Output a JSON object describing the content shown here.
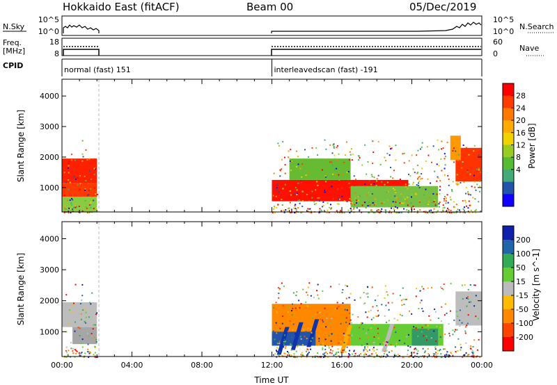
{
  "header": {
    "station": "Hokkaido East (fitACF)",
    "beam": "Beam 00",
    "date": "05/Dec/2019"
  },
  "strip_labels": {
    "nsky": "N.Sky",
    "freq_line1": "Freq.",
    "freq_line2": "[MHz]",
    "cpid": "CPID",
    "nsearch": "N.Search",
    "nave": "Nave"
  },
  "noise_axis": {
    "left_ticks": [
      "10^5",
      "10^0"
    ],
    "right_ticks": [
      "10^5",
      "10^0"
    ]
  },
  "freq_axis": {
    "left_ticks": [
      "18",
      "8"
    ],
    "right_ticks": [
      "60",
      "0"
    ]
  },
  "cpid_segments": [
    {
      "label": "normal (fast) 151",
      "start_hr": 0.0,
      "end_hr": 2.0
    },
    {
      "label": "interleavedscan (fast) -191",
      "start_hr": 12.0,
      "end_hr": 24.0
    }
  ],
  "chart_data": [
    {
      "type": "heatmap",
      "ylabel": "Slant Range [km]",
      "xlim": [
        0,
        24
      ],
      "ylim": [
        200,
        4550
      ],
      "yticks": [
        "1000",
        "2000",
        "3000",
        "4000"
      ],
      "colorbar": {
        "label": "Power [dB]",
        "ticks": [
          "28",
          "24",
          "20",
          "16",
          "12",
          "8",
          "4"
        ],
        "colors": [
          "#ff0000",
          "#ff3c00",
          "#ff7800",
          "#ffaa00",
          "#f0d200",
          "#99cc22",
          "#55bb33",
          "#44aa77",
          "#2255aa",
          "#1100ff"
        ]
      },
      "regions": [
        {
          "t0": 0.0,
          "t1": 2.0,
          "r0": 1150,
          "r1": 1950,
          "color": "#ff2000"
        },
        {
          "t0": 0.0,
          "t1": 2.0,
          "r0": 700,
          "r1": 1150,
          "color": "#ff3a00"
        },
        {
          "t0": 0.0,
          "t1": 2.0,
          "r0": 200,
          "r1": 700,
          "color": "#88cc44"
        },
        {
          "t0": 12.0,
          "t1": 19.8,
          "r0": 550,
          "r1": 1250,
          "color": "#ff1000"
        },
        {
          "t0": 13.0,
          "t1": 16.5,
          "r0": 1250,
          "r1": 1950,
          "color": "#66bb33"
        },
        {
          "t0": 16.5,
          "t1": 21.5,
          "r0": 350,
          "r1": 1050,
          "color": "#77c044"
        },
        {
          "t0": 22.5,
          "t1": 24.0,
          "r0": 1200,
          "r1": 2300,
          "color": "#ff3300"
        },
        {
          "t0": 22.2,
          "t1": 22.8,
          "r0": 1900,
          "r1": 2700,
          "color": "#ff9900"
        }
      ]
    },
    {
      "type": "heatmap",
      "ylabel": "Slant Range [km]",
      "xlabel": "Time UT",
      "xlim": [
        0,
        24
      ],
      "ylim": [
        200,
        4550
      ],
      "yticks": [
        "1000",
        "2000",
        "3000",
        "4000"
      ],
      "xticks": [
        "00:00",
        "04:00",
        "08:00",
        "12:00",
        "16:00",
        "20:00",
        "00:00"
      ],
      "colorbar": {
        "label": "Velocity [m s^-1]",
        "ticks": [
          "200",
          "100",
          "50",
          "15",
          "-15",
          "-50",
          "-100",
          "-200"
        ],
        "colors": [
          "#1020aa",
          "#2266aa",
          "#33aa55",
          "#66cc33",
          "#bbbbbb",
          "#ffbb00",
          "#ff8800",
          "#ff4400",
          "#ff0000"
        ]
      },
      "regions": [
        {
          "t0": 0.0,
          "t1": 2.0,
          "r0": 1150,
          "r1": 1950,
          "color": "#bdbdbd"
        },
        {
          "t0": 0.6,
          "t1": 2.0,
          "r0": 600,
          "r1": 1150,
          "color": "#a6a6a6"
        },
        {
          "t0": 12.0,
          "t1": 16.5,
          "r0": 550,
          "r1": 1900,
          "color": "#ff8800"
        },
        {
          "t0": 12.0,
          "t1": 14.5,
          "r0": 550,
          "r1": 1000,
          "color": "#2255aa"
        },
        {
          "t0": 16.5,
          "t1": 21.8,
          "r0": 550,
          "r1": 1250,
          "color": "#66cc33"
        },
        {
          "t0": 20.0,
          "t1": 21.5,
          "r0": 550,
          "r1": 1100,
          "color": "#339966"
        },
        {
          "t0": 22.5,
          "t1": 24.0,
          "r0": 1200,
          "r1": 2300,
          "color": "#bdbdbd"
        }
      ],
      "streaks": [
        {
          "t": 12.6,
          "r": 750,
          "color": "#1133aa"
        },
        {
          "t": 13.4,
          "r": 900,
          "color": "#1133aa"
        },
        {
          "t": 14.3,
          "r": 1000,
          "color": "#1133aa"
        },
        {
          "t": 16.2,
          "r": 800,
          "color": "#ffaa00"
        },
        {
          "t": 18.6,
          "r": 850,
          "color": "#bbbbbb"
        }
      ]
    }
  ]
}
